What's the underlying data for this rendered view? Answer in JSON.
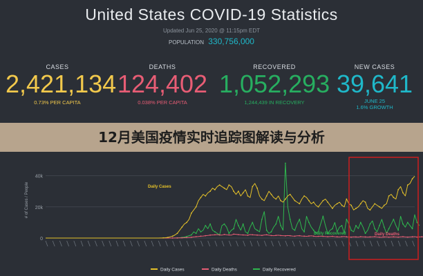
{
  "dashboard": {
    "title": "United States COVID-19 Statistics",
    "updated": "Updated Jun 25, 2020 @ 11:15pm EDT",
    "population_label": "POPULATION",
    "population_value": "330,756,000",
    "stats": [
      {
        "label": "CASES",
        "value": "2,421,134",
        "sub": "0.73% PER CAPITA",
        "color": "#f2c94c"
      },
      {
        "label": "DEATHS",
        "value": "124,402",
        "sub": "0.038% PER CAPITA",
        "color": "#e85d75"
      },
      {
        "label": "RECOVERED",
        "value": "1,052,293",
        "sub": "1,244,439 IN RECOVERY",
        "color": "#27ae60"
      },
      {
        "label": "NEW CASES",
        "value": "39,641",
        "sub2": "JUNE 25",
        "sub": "1.6% GROWTH",
        "color": "#1fb8c9"
      }
    ]
  },
  "heading": "12月美国疫情实时追踪图解读与分析",
  "chart_data": {
    "type": "line",
    "ylabel": "# of Cases / People",
    "yticks": [
      "0",
      "20k",
      "40k"
    ],
    "ylim": [
      0,
      50000
    ],
    "legend": [
      "Daily Cases",
      "Daily Deaths",
      "Daily Recovered"
    ],
    "annotations": [
      "Daily Cases",
      "Daily Recovered",
      "Daily Deaths"
    ],
    "colors": {
      "cases": "#e6c229",
      "deaths": "#e85d75",
      "recovered": "#2fb84e",
      "highlight": "#cc1f1f"
    },
    "series": [
      {
        "name": "Daily Cases",
        "values": [
          0,
          0,
          0,
          0,
          0,
          0,
          0,
          0,
          0,
          0,
          0,
          0,
          0,
          0,
          0,
          0,
          0,
          0,
          0,
          0,
          0,
          0,
          0,
          0,
          0,
          0,
          0,
          0,
          0,
          0,
          0,
          0,
          0,
          0,
          0,
          0,
          0,
          0,
          0,
          0,
          0,
          0,
          0,
          0,
          0,
          0,
          0,
          0,
          0,
          50,
          100,
          200,
          400,
          800,
          1200,
          2000,
          3000,
          5000,
          7000,
          9000,
          10000,
          12000,
          16000,
          18000,
          20000,
          24000,
          26000,
          28000,
          27000,
          29000,
          30000,
          32000,
          31000,
          33000,
          34000,
          33000,
          32000,
          31000,
          34000,
          33000,
          30000,
          28000,
          30000,
          27000,
          29000,
          31000,
          27000,
          26000,
          33000,
          35000,
          32000,
          27000,
          25000,
          24000,
          27000,
          30000,
          28000,
          26000,
          25000,
          27000,
          24000,
          23000,
          25000,
          27000,
          28000,
          26000,
          24000,
          23000,
          22000,
          25000,
          27000,
          26000,
          24000,
          22000,
          23000,
          21000,
          20000,
          22000,
          24000,
          25000,
          23000,
          21000,
          19000,
          21000,
          22000,
          23000,
          21000,
          20000,
          25000,
          22000,
          21000,
          18000,
          19000,
          20000,
          22000,
          24000,
          23000,
          19000,
          18000,
          20000,
          22000,
          21000,
          20000,
          19000,
          21000,
          22000,
          27000,
          28000,
          26000,
          25000,
          31000,
          33000,
          29000,
          27000,
          34000,
          35000,
          38000,
          39641
        ]
      },
      {
        "name": "Daily Deaths",
        "values": [
          0,
          0,
          0,
          0,
          0,
          0,
          0,
          0,
          0,
          0,
          0,
          0,
          0,
          0,
          0,
          0,
          0,
          0,
          0,
          0,
          0,
          0,
          0,
          0,
          0,
          0,
          0,
          0,
          0,
          0,
          0,
          0,
          0,
          0,
          0,
          0,
          0,
          0,
          0,
          0,
          0,
          0,
          0,
          0,
          0,
          0,
          0,
          0,
          0,
          0,
          0,
          0,
          0,
          10,
          20,
          40,
          60,
          100,
          150,
          200,
          300,
          400,
          500,
          700,
          900,
          1000,
          1200,
          1300,
          1500,
          1700,
          1900,
          2000,
          2100,
          2200,
          2000,
          1900,
          2300,
          2100,
          2000,
          1900,
          2500,
          2400,
          2200,
          2100,
          2000,
          1900,
          1800,
          2200,
          2100,
          2000,
          1900,
          1800,
          1700,
          2000,
          2100,
          1800,
          1600,
          1500,
          1700,
          1800,
          1600,
          1500,
          1400,
          1600,
          1500,
          1300,
          1200,
          1400,
          1500,
          1300,
          1200,
          1100,
          1300,
          1400,
          1200,
          1000,
          1100,
          1200,
          1100,
          1000,
          900,
          1000,
          1100,
          900,
          800,
          700,
          900,
          1000,
          800,
          700,
          600,
          800,
          700,
          600,
          900,
          800,
          700,
          600,
          700,
          800,
          900,
          700,
          600,
          500,
          700,
          800,
          600,
          700,
          800,
          700,
          600,
          800,
          900,
          700,
          600,
          700,
          800,
          900,
          600,
          700,
          800,
          700
        ]
      },
      {
        "name": "Daily Recovered",
        "values": [
          0,
          0,
          0,
          0,
          0,
          0,
          0,
          0,
          0,
          0,
          0,
          0,
          0,
          0,
          0,
          0,
          0,
          0,
          0,
          0,
          0,
          0,
          0,
          0,
          0,
          0,
          0,
          0,
          0,
          0,
          0,
          0,
          0,
          0,
          0,
          0,
          0,
          0,
          0,
          0,
          0,
          0,
          0,
          0,
          0,
          0,
          0,
          0,
          0,
          0,
          0,
          0,
          0,
          0,
          0,
          0,
          100,
          200,
          400,
          600,
          1000,
          1500,
          2000,
          4000,
          3000,
          6000,
          4000,
          5000,
          8000,
          6000,
          9000,
          5000,
          4000,
          3000,
          2000,
          8000,
          9000,
          7000,
          3000,
          5000,
          6000,
          12000,
          8000,
          5000,
          9000,
          4000,
          3000,
          7000,
          10000,
          6000,
          5000,
          4000,
          12000,
          17000,
          5000,
          3000,
          4000,
          7000,
          9000,
          14000,
          8000,
          5000,
          48000,
          20000,
          12000,
          6000,
          5000,
          9000,
          12000,
          6000,
          4000,
          14000,
          10000,
          7000,
          5000,
          3000,
          4000,
          9000,
          14000,
          8000,
          3000,
          5000,
          6000,
          10000,
          4000,
          7000,
          8000,
          3000,
          12000,
          9000,
          5000,
          4000,
          8000,
          6000,
          10000,
          7000,
          3000,
          5000,
          9000,
          11000,
          6000,
          4000,
          8000,
          12000,
          7000,
          3000,
          6000,
          9000,
          12000,
          8000,
          5000,
          14000,
          9000,
          7000,
          10000,
          8000,
          6000,
          15000,
          10000,
          8000
        ]
      }
    ]
  }
}
